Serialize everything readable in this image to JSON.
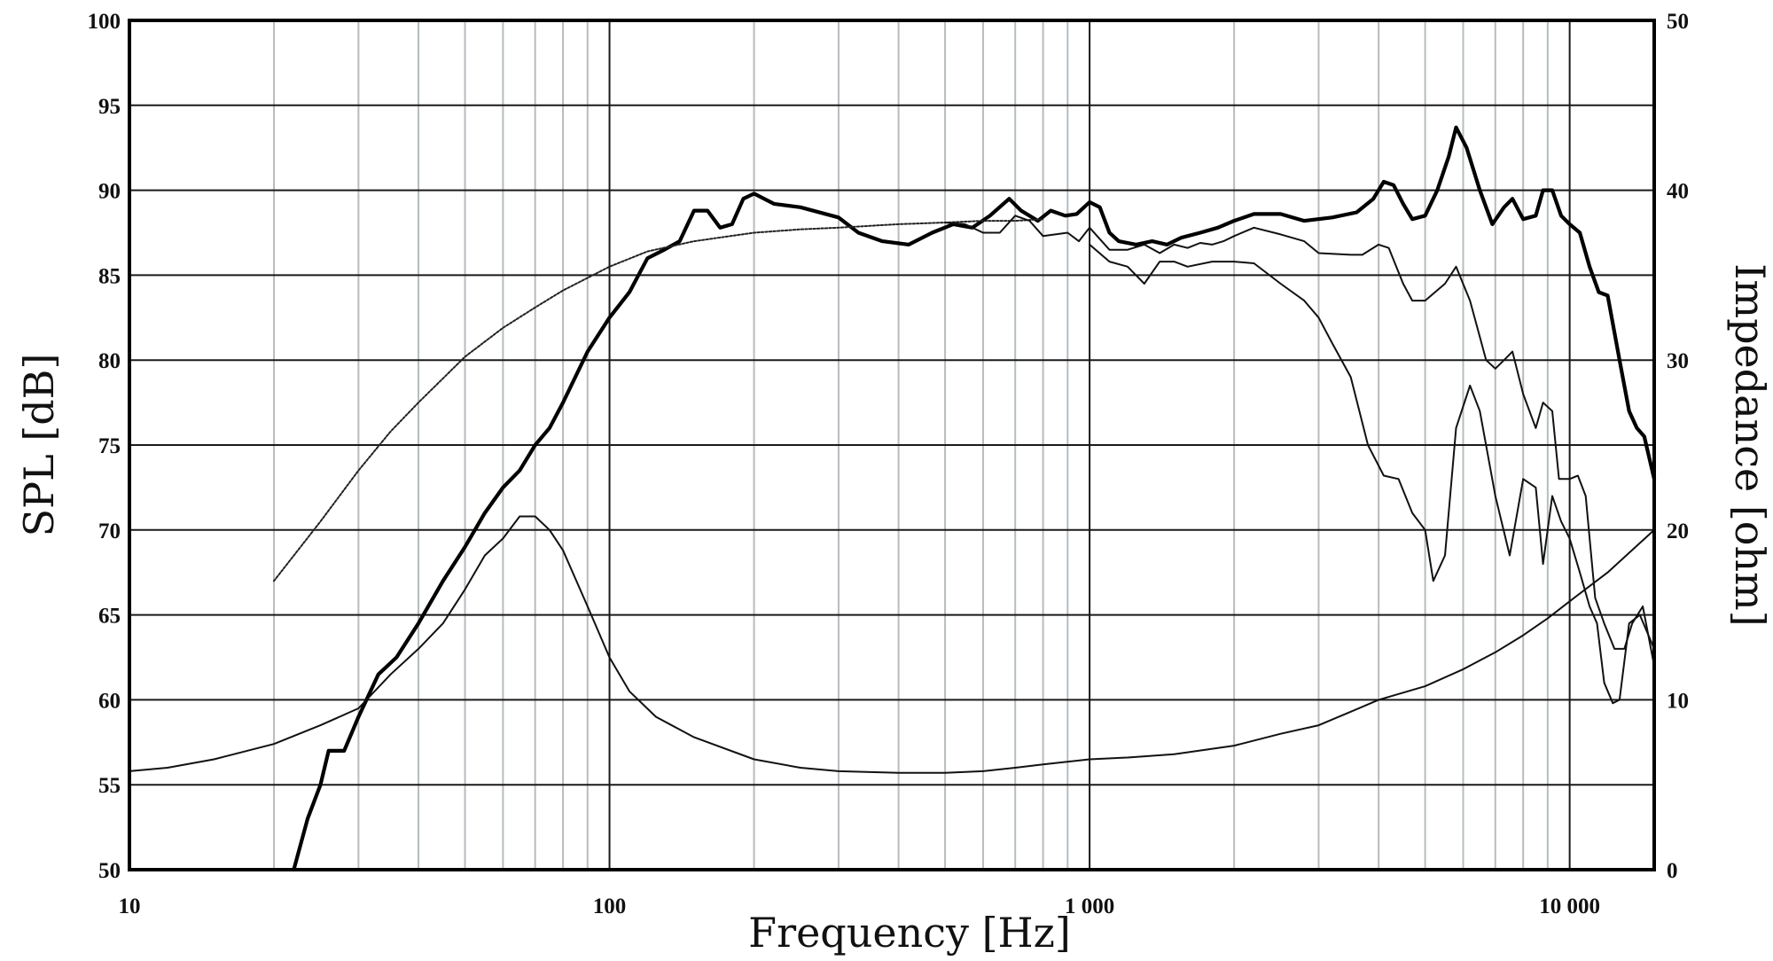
{
  "chart_data": {
    "type": "line",
    "xlabel": "Frequency [Hz]",
    "ylabel": "SPL [dB]",
    "y2label": "Impedance [ohm]",
    "x_scale": "log",
    "xlim": [
      10,
      15000
    ],
    "ylim": [
      50,
      100
    ],
    "y2lim": [
      0,
      50
    ],
    "grid": true,
    "x_ticks": [
      {
        "value": 10,
        "label": "10"
      },
      {
        "value": 100,
        "label": "100"
      },
      {
        "value": 1000,
        "label": "1 000"
      },
      {
        "value": 10000,
        "label": "10 000"
      }
    ],
    "y_ticks": [
      {
        "value": 50,
        "label": "50"
      },
      {
        "value": 55,
        "label": "55"
      },
      {
        "value": 60,
        "label": "60"
      },
      {
        "value": 65,
        "label": "65"
      },
      {
        "value": 70,
        "label": "70"
      },
      {
        "value": 75,
        "label": "75"
      },
      {
        "value": 80,
        "label": "80"
      },
      {
        "value": 85,
        "label": "85"
      },
      {
        "value": 90,
        "label": "90"
      },
      {
        "value": 95,
        "label": "95"
      },
      {
        "value": 100,
        "label": "100"
      }
    ],
    "y2_ticks": [
      {
        "value": 0,
        "label": "0"
      },
      {
        "value": 10,
        "label": "10"
      },
      {
        "value": 20,
        "label": "20"
      },
      {
        "value": 30,
        "label": "30"
      },
      {
        "value": 40,
        "label": "40"
      },
      {
        "value": 50,
        "label": "50"
      }
    ],
    "series": [
      {
        "axis": "left",
        "style": "thick",
        "points": [
          [
            22,
            50
          ],
          [
            23.5,
            53
          ],
          [
            25,
            55
          ],
          [
            26,
            57
          ],
          [
            28,
            57
          ],
          [
            30,
            59
          ],
          [
            33,
            61.5
          ],
          [
            36,
            62.5
          ],
          [
            40,
            64.5
          ],
          [
            45,
            67
          ],
          [
            50,
            69
          ],
          [
            55,
            71
          ],
          [
            60,
            72.5
          ],
          [
            65,
            73.5
          ],
          [
            70,
            75
          ],
          [
            75,
            76
          ],
          [
            80,
            77.5
          ],
          [
            90,
            80.5
          ],
          [
            100,
            82.5
          ],
          [
            110,
            84
          ],
          [
            120,
            86
          ],
          [
            130,
            86.5
          ],
          [
            140,
            87
          ],
          [
            150,
            88.8
          ],
          [
            160,
            88.8
          ],
          [
            170,
            87.8
          ],
          [
            180,
            88
          ],
          [
            190,
            89.5
          ],
          [
            200,
            89.8
          ],
          [
            220,
            89.2
          ],
          [
            250,
            89
          ],
          [
            300,
            88.4
          ],
          [
            330,
            87.5
          ],
          [
            370,
            87
          ],
          [
            420,
            86.8
          ],
          [
            470,
            87.5
          ],
          [
            520,
            88
          ],
          [
            570,
            87.8
          ],
          [
            620,
            88.5
          ],
          [
            680,
            89.5
          ],
          [
            720,
            88.8
          ],
          [
            780,
            88.2
          ],
          [
            830,
            88.8
          ],
          [
            890,
            88.5
          ],
          [
            940,
            88.6
          ],
          [
            1000,
            89.3
          ],
          [
            1050,
            89
          ],
          [
            1100,
            87.5
          ],
          [
            1150,
            87
          ],
          [
            1250,
            86.8
          ],
          [
            1350,
            87
          ],
          [
            1450,
            86.8
          ],
          [
            1550,
            87.2
          ],
          [
            1700,
            87.5
          ],
          [
            1850,
            87.8
          ],
          [
            2000,
            88.2
          ],
          [
            2200,
            88.6
          ],
          [
            2500,
            88.6
          ],
          [
            2800,
            88.2
          ],
          [
            3200,
            88.4
          ],
          [
            3600,
            88.7
          ],
          [
            3900,
            89.5
          ],
          [
            4100,
            90.5
          ],
          [
            4300,
            90.3
          ],
          [
            4500,
            89.2
          ],
          [
            4700,
            88.3
          ],
          [
            5000,
            88.5
          ],
          [
            5300,
            90
          ],
          [
            5600,
            92
          ],
          [
            5800,
            93.7
          ],
          [
            6100,
            92.5
          ],
          [
            6500,
            90
          ],
          [
            6900,
            88
          ],
          [
            7300,
            89
          ],
          [
            7600,
            89.5
          ],
          [
            8000,
            88.3
          ],
          [
            8500,
            88.5
          ],
          [
            8800,
            90
          ],
          [
            9200,
            90
          ],
          [
            9600,
            88.5
          ],
          [
            10000,
            88
          ],
          [
            10500,
            87.5
          ],
          [
            11000,
            85.5
          ],
          [
            11500,
            84
          ],
          [
            12000,
            83.8
          ],
          [
            12700,
            80
          ],
          [
            13300,
            77
          ],
          [
            13800,
            76
          ],
          [
            14300,
            75.5
          ],
          [
            15000,
            73
          ]
        ]
      },
      {
        "axis": "left",
        "style": "dotted",
        "points": [
          [
            20,
            67
          ],
          [
            25,
            70.5
          ],
          [
            30,
            73.5
          ],
          [
            35,
            75.8
          ],
          [
            40,
            77.5
          ],
          [
            50,
            80.2
          ],
          [
            60,
            81.9
          ],
          [
            70,
            83.1
          ],
          [
            80,
            84.1
          ],
          [
            100,
            85.5
          ],
          [
            120,
            86.4
          ],
          [
            150,
            87
          ],
          [
            200,
            87.5
          ],
          [
            250,
            87.7
          ],
          [
            300,
            87.8
          ],
          [
            400,
            88
          ],
          [
            500,
            88.1
          ],
          [
            600,
            88.2
          ],
          [
            700,
            88.2
          ],
          [
            800,
            88.3
          ]
        ]
      },
      {
        "axis": "left",
        "style": "thin",
        "points": [
          [
            500,
            88.1
          ],
          [
            550,
            88
          ],
          [
            600,
            87.5
          ],
          [
            650,
            87.5
          ],
          [
            700,
            88.5
          ],
          [
            750,
            88.2
          ],
          [
            800,
            87.3
          ],
          [
            900,
            87.5
          ],
          [
            950,
            87
          ],
          [
            1000,
            87.8
          ],
          [
            1100,
            86.5
          ],
          [
            1200,
            86.5
          ],
          [
            1300,
            86.8
          ],
          [
            1400,
            86.3
          ],
          [
            1500,
            86.8
          ],
          [
            1600,
            86.6
          ],
          [
            1700,
            86.9
          ],
          [
            1800,
            86.8
          ],
          [
            1900,
            87
          ],
          [
            2000,
            87.3
          ],
          [
            2200,
            87.8
          ],
          [
            2500,
            87.4
          ],
          [
            2800,
            87
          ],
          [
            3000,
            86.3
          ],
          [
            3500,
            86.2
          ],
          [
            3700,
            86.2
          ],
          [
            4000,
            86.8
          ],
          [
            4200,
            86.6
          ],
          [
            4500,
            84.5
          ],
          [
            4700,
            83.5
          ],
          [
            5000,
            83.5
          ],
          [
            5500,
            84.5
          ],
          [
            5800,
            85.5
          ],
          [
            6200,
            83.5
          ],
          [
            6700,
            80
          ],
          [
            7000,
            79.5
          ],
          [
            7300,
            80
          ],
          [
            7600,
            80.5
          ],
          [
            8000,
            78
          ],
          [
            8500,
            76
          ],
          [
            8800,
            77.5
          ],
          [
            9200,
            77
          ],
          [
            9500,
            73
          ],
          [
            10000,
            73
          ],
          [
            10400,
            73.2
          ],
          [
            10800,
            72
          ],
          [
            11300,
            66
          ],
          [
            11800,
            64.5
          ],
          [
            12400,
            63
          ],
          [
            13000,
            63
          ],
          [
            13500,
            64.5
          ],
          [
            14200,
            65.5
          ],
          [
            15000,
            62
          ]
        ]
      },
      {
        "axis": "left",
        "style": "thin",
        "points": [
          [
            1000,
            86.8
          ],
          [
            1100,
            85.8
          ],
          [
            1200,
            85.5
          ],
          [
            1300,
            84.5
          ],
          [
            1400,
            85.8
          ],
          [
            1500,
            85.8
          ],
          [
            1600,
            85.5
          ],
          [
            1800,
            85.8
          ],
          [
            2000,
            85.8
          ],
          [
            2200,
            85.7
          ],
          [
            2500,
            84.5
          ],
          [
            2800,
            83.5
          ],
          [
            3000,
            82.5
          ],
          [
            3200,
            81
          ],
          [
            3500,
            79
          ],
          [
            3800,
            75
          ],
          [
            4100,
            73.2
          ],
          [
            4400,
            73
          ],
          [
            4700,
            71
          ],
          [
            5000,
            70
          ],
          [
            5200,
            67
          ],
          [
            5500,
            68.5
          ],
          [
            5800,
            76
          ],
          [
            6200,
            78.5
          ],
          [
            6500,
            77
          ],
          [
            7000,
            72
          ],
          [
            7500,
            68.5
          ],
          [
            8000,
            73
          ],
          [
            8500,
            72.5
          ],
          [
            8800,
            68
          ],
          [
            9200,
            72
          ],
          [
            9600,
            70.5
          ],
          [
            10000,
            69.5
          ],
          [
            10500,
            67.5
          ],
          [
            11000,
            65.5
          ],
          [
            11400,
            64.5
          ],
          [
            11800,
            61
          ],
          [
            12300,
            59.8
          ],
          [
            12700,
            60
          ],
          [
            13300,
            64.5
          ],
          [
            14000,
            65
          ],
          [
            15000,
            63
          ]
        ]
      },
      {
        "axis": "right",
        "style": "thin",
        "points": [
          [
            10,
            5.8
          ],
          [
            12,
            6
          ],
          [
            15,
            6.5
          ],
          [
            20,
            7.4
          ],
          [
            25,
            8.5
          ],
          [
            30,
            9.5
          ],
          [
            35,
            11.5
          ],
          [
            40,
            13
          ],
          [
            45,
            14.5
          ],
          [
            50,
            16.5
          ],
          [
            55,
            18.5
          ],
          [
            60,
            19.5
          ],
          [
            65,
            20.8
          ],
          [
            70,
            20.8
          ],
          [
            75,
            20
          ],
          [
            80,
            18.8
          ],
          [
            90,
            15.5
          ],
          [
            100,
            12.5
          ],
          [
            110,
            10.5
          ],
          [
            125,
            9
          ],
          [
            150,
            7.8
          ],
          [
            200,
            6.5
          ],
          [
            250,
            6
          ],
          [
            300,
            5.8
          ],
          [
            400,
            5.7
          ],
          [
            500,
            5.7
          ],
          [
            600,
            5.8
          ],
          [
            700,
            6
          ],
          [
            800,
            6.2
          ],
          [
            1000,
            6.5
          ],
          [
            1200,
            6.6
          ],
          [
            1500,
            6.8
          ],
          [
            2000,
            7.3
          ],
          [
            2500,
            8
          ],
          [
            3000,
            8.5
          ],
          [
            3500,
            9.3
          ],
          [
            4000,
            10
          ],
          [
            5000,
            10.8
          ],
          [
            6000,
            11.8
          ],
          [
            7000,
            12.8
          ],
          [
            8000,
            13.8
          ],
          [
            9000,
            14.8
          ],
          [
            10000,
            15.8
          ],
          [
            12000,
            17.5
          ],
          [
            15000,
            20
          ]
        ]
      }
    ]
  }
}
